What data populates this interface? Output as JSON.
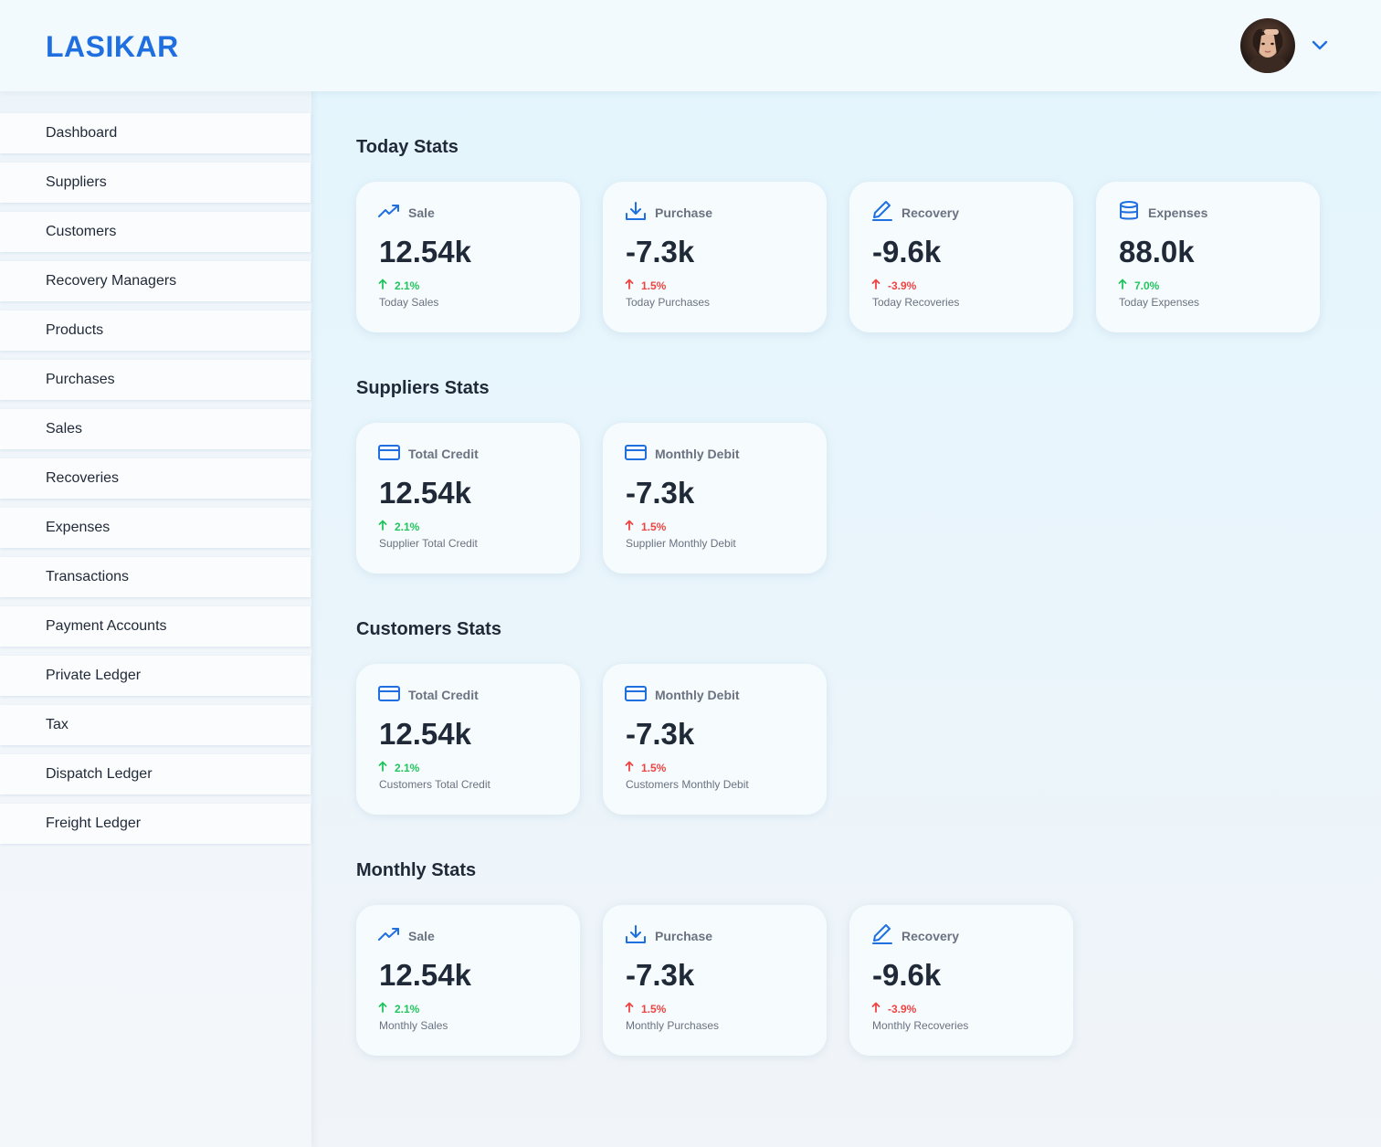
{
  "app": {
    "logo": "LASIKAR"
  },
  "sidebar": {
    "items": [
      {
        "label": "Dashboard"
      },
      {
        "label": "Suppliers"
      },
      {
        "label": "Customers"
      },
      {
        "label": "Recovery Managers"
      },
      {
        "label": "Products"
      },
      {
        "label": "Purchases"
      },
      {
        "label": "Sales"
      },
      {
        "label": "Recoveries"
      },
      {
        "label": "Expenses"
      },
      {
        "label": "Transactions"
      },
      {
        "label": "Payment Accounts"
      },
      {
        "label": "Private Ledger"
      },
      {
        "label": "Tax"
      },
      {
        "label": "Dispatch Ledger"
      },
      {
        "label": "Freight Ledger"
      }
    ]
  },
  "sections": [
    {
      "title": "Today Stats",
      "cards": [
        {
          "icon": "trending-up-icon",
          "label": "Sale",
          "value": "12.54k",
          "change": "2.1%",
          "trend": "up",
          "subtitle": "Today Sales"
        },
        {
          "icon": "download-icon",
          "label": "Purchase",
          "value": "-7.3k",
          "change": "1.5%",
          "trend": "down",
          "subtitle": "Today Purchases"
        },
        {
          "icon": "pen-icon",
          "label": "Recovery",
          "value": "-9.6k",
          "change": "-3.9%",
          "trend": "down",
          "subtitle": "Today Recoveries"
        },
        {
          "icon": "database-icon",
          "label": "Expenses",
          "value": "88.0k",
          "change": "7.0%",
          "trend": "up",
          "subtitle": "Today Expenses"
        }
      ]
    },
    {
      "title": "Suppliers Stats",
      "cards": [
        {
          "icon": "credit-card-icon",
          "label": "Total Credit",
          "value": "12.54k",
          "change": "2.1%",
          "trend": "up",
          "subtitle": "Supplier Total Credit"
        },
        {
          "icon": "credit-card-icon",
          "label": "Monthly Debit",
          "value": "-7.3k",
          "change": "1.5%",
          "trend": "down",
          "subtitle": "Supplier Monthly Debit"
        }
      ]
    },
    {
      "title": "Customers Stats",
      "cards": [
        {
          "icon": "credit-card-icon",
          "label": "Total Credit",
          "value": "12.54k",
          "change": "2.1%",
          "trend": "up",
          "subtitle": "Customers Total Credit"
        },
        {
          "icon": "credit-card-icon",
          "label": "Monthly Debit",
          "value": "-7.3k",
          "change": "1.5%",
          "trend": "down",
          "subtitle": "Customers Monthly Debit"
        }
      ]
    },
    {
      "title": "Monthly Stats",
      "cards": [
        {
          "icon": "trending-up-icon",
          "label": "Sale",
          "value": "12.54k",
          "change": "2.1%",
          "trend": "up",
          "subtitle": "Monthly Sales"
        },
        {
          "icon": "download-icon",
          "label": "Purchase",
          "value": "-7.3k",
          "change": "1.5%",
          "trend": "down",
          "subtitle": "Monthly Purchases"
        },
        {
          "icon": "pen-icon",
          "label": "Recovery",
          "value": "-9.6k",
          "change": "-3.9%",
          "trend": "down",
          "subtitle": "Monthly Recoveries"
        }
      ]
    }
  ],
  "colors": {
    "accent": "#1f6fe0",
    "up": "#22c55e",
    "down": "#ef4444"
  }
}
